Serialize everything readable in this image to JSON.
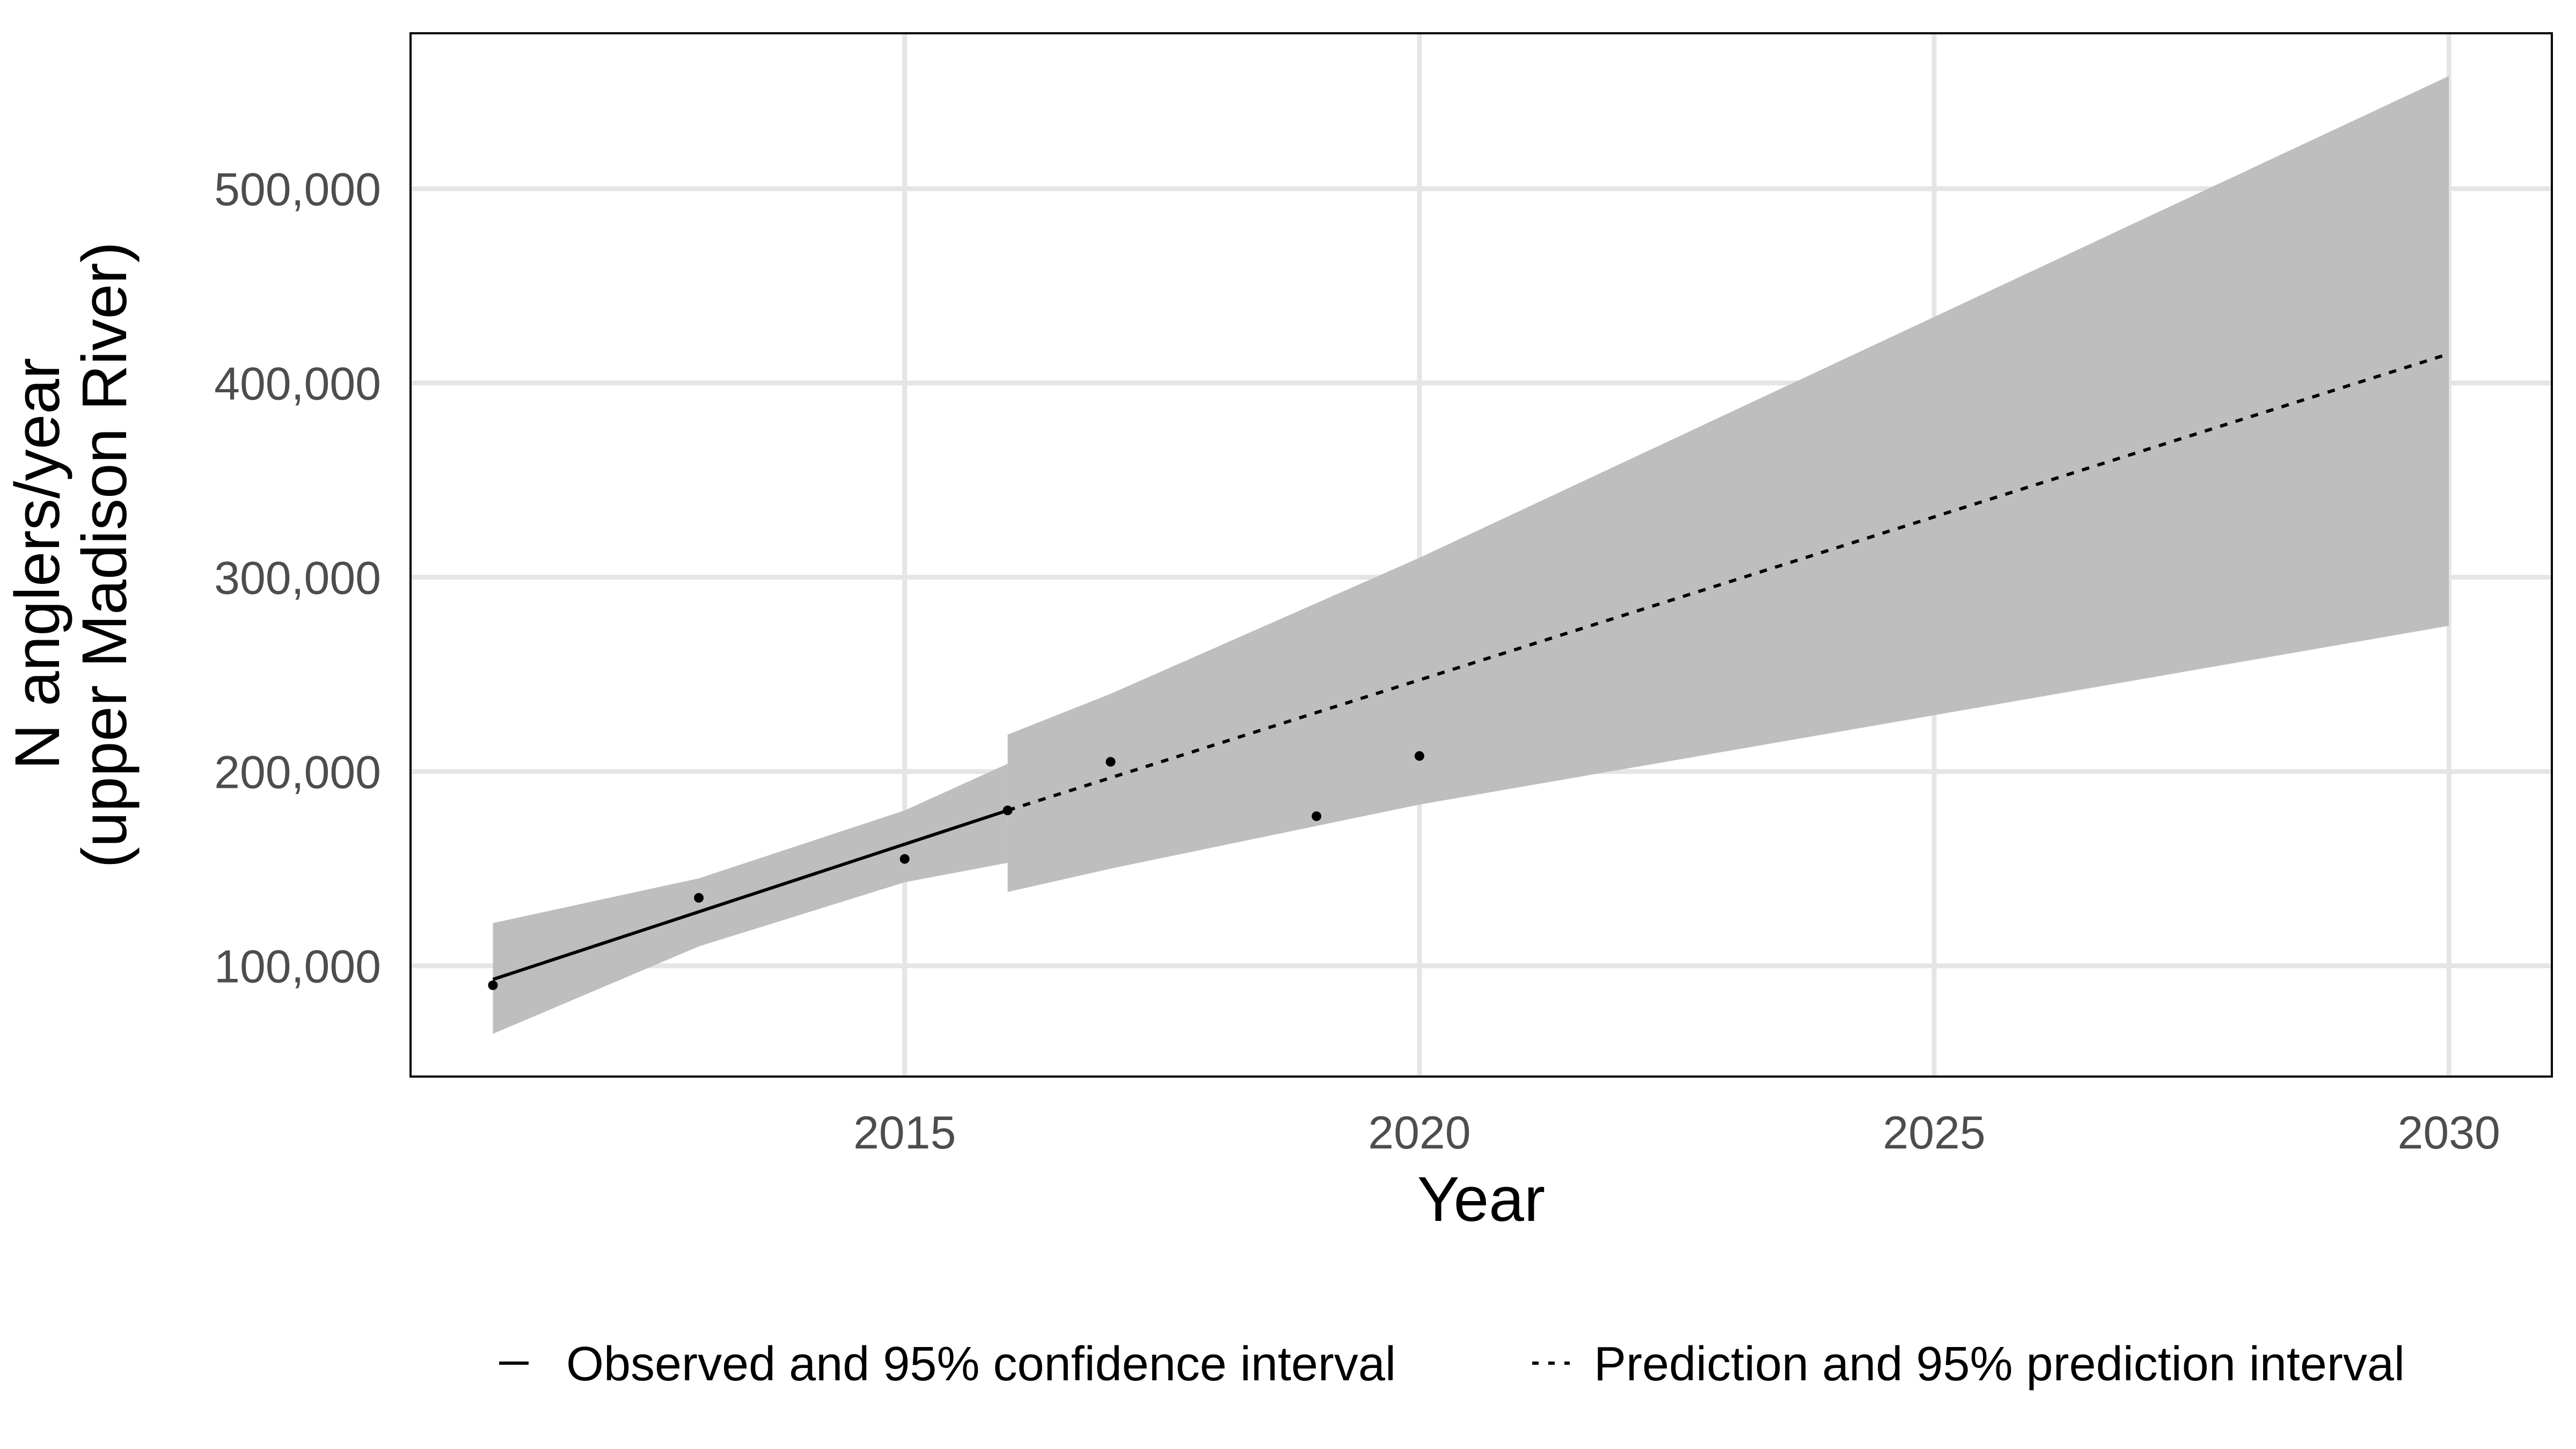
{
  "chart_data": {
    "type": "line",
    "xlabel": "Year",
    "ylabel_lines": [
      "N anglers/year",
      "(upper Madison River)"
    ],
    "xlim": [
      2010.2,
      2031.0
    ],
    "ylim": [
      43000,
      580000
    ],
    "x_ticks": [
      2015,
      2020,
      2025,
      2030
    ],
    "x_tick_labels": [
      "2015",
      "2020",
      "2025",
      "2030"
    ],
    "y_ticks": [
      100000,
      200000,
      300000,
      400000,
      500000
    ],
    "y_tick_labels": [
      "100,000",
      "200,000",
      "300,000",
      "400,000",
      "500,000"
    ],
    "grid": true,
    "legend_position": "bottom",
    "colors": {
      "band": "#bebebe",
      "line": "#000000",
      "points": "#000000",
      "grid": "#e5e5e5",
      "panel_border": "#000000"
    },
    "observed_points": [
      {
        "x": 2011,
        "y": 90000
      },
      {
        "x": 2013,
        "y": 135000
      },
      {
        "x": 2015,
        "y": 155000
      },
      {
        "x": 2016,
        "y": 180000
      },
      {
        "x": 2017,
        "y": 205000
      },
      {
        "x": 2019,
        "y": 177000
      },
      {
        "x": 2020,
        "y": 208000
      }
    ],
    "series": [
      {
        "name": "Observed and 95% confidence interval",
        "line_style": "solid",
        "fit_x": [
          2011,
          2016
        ],
        "fit_y": [
          93000,
          180000
        ],
        "band_x": [
          2011,
          2013,
          2015,
          2016
        ],
        "band_lower": [
          65000,
          110000,
          143000,
          153000
        ],
        "band_upper": [
          122000,
          145000,
          180000,
          204000
        ]
      },
      {
        "name": "Prediction and 95% prediction interval",
        "line_style": "dashed",
        "fit_x": [
          2016,
          2030
        ],
        "fit_y": [
          180000,
          415000
        ],
        "band_x": [
          2016,
          2017,
          2020,
          2030
        ],
        "band_lower": [
          138000,
          150000,
          183000,
          275000
        ],
        "band_upper": [
          219000,
          240000,
          310000,
          558000
        ]
      }
    ]
  }
}
